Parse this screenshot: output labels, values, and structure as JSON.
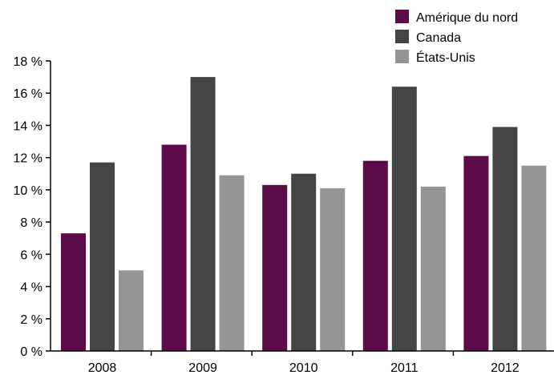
{
  "chart_data": {
    "type": "bar",
    "categories": [
      "2008",
      "2009",
      "2010",
      "2011",
      "2012"
    ],
    "series": [
      {
        "name": "Amérique du nord",
        "color": "#5c0a48",
        "values": [
          7.3,
          12.8,
          10.3,
          11.8,
          12.1
        ]
      },
      {
        "name": "Canada",
        "color": "#444446",
        "values": [
          11.7,
          17.0,
          11.0,
          16.4,
          13.9
        ]
      },
      {
        "name": "États-Unis",
        "color": "#959595",
        "values": [
          5.0,
          10.9,
          10.1,
          10.2,
          11.5
        ]
      }
    ],
    "ylim": [
      0,
      18
    ],
    "yticks": [
      0,
      2,
      4,
      6,
      8,
      10,
      12,
      14,
      16,
      18
    ],
    "ytick_labels": [
      "0 %",
      "2 %",
      "4 %",
      "6 %",
      "8 %",
      "10 %",
      "12 %",
      "14 %",
      "16 %",
      "18 %"
    ],
    "title": "",
    "xlabel": "",
    "ylabel": "",
    "grid": false,
    "legend_position": "top-right"
  }
}
